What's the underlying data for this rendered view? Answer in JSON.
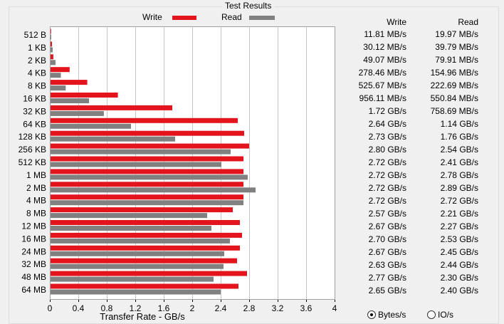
{
  "window": {
    "group_title": "Test Results"
  },
  "legend": {
    "write_label": "Write",
    "read_label": "Read"
  },
  "table": {
    "write_header": "Write",
    "read_header": "Read",
    "rows": [
      {
        "write": "11.81 MB/s",
        "read": "19.97 MB/s"
      },
      {
        "write": "30.12 MB/s",
        "read": "39.79 MB/s"
      },
      {
        "write": "49.07 MB/s",
        "read": "79.91 MB/s"
      },
      {
        "write": "278.46 MB/s",
        "read": "154.96 MB/s"
      },
      {
        "write": "525.67 MB/s",
        "read": "222.69 MB/s"
      },
      {
        "write": "956.11 MB/s",
        "read": "550.84 MB/s"
      },
      {
        "write": "1.72 GB/s",
        "read": "758.69 MB/s"
      },
      {
        "write": "2.64 GB/s",
        "read": "1.14 GB/s"
      },
      {
        "write": "2.73 GB/s",
        "read": "1.76 GB/s"
      },
      {
        "write": "2.80 GB/s",
        "read": "2.54 GB/s"
      },
      {
        "write": "2.72 GB/s",
        "read": "2.41 GB/s"
      },
      {
        "write": "2.72 GB/s",
        "read": "2.78 GB/s"
      },
      {
        "write": "2.72 GB/s",
        "read": "2.89 GB/s"
      },
      {
        "write": "2.72 GB/s",
        "read": "2.72 GB/s"
      },
      {
        "write": "2.57 GB/s",
        "read": "2.21 GB/s"
      },
      {
        "write": "2.67 GB/s",
        "read": "2.27 GB/s"
      },
      {
        "write": "2.70 GB/s",
        "read": "2.53 GB/s"
      },
      {
        "write": "2.67 GB/s",
        "read": "2.45 GB/s"
      },
      {
        "write": "2.63 GB/s",
        "read": "2.44 GB/s"
      },
      {
        "write": "2.77 GB/s",
        "read": "2.30 GB/s"
      },
      {
        "write": "2.65 GB/s",
        "read": "2.40 GB/s"
      }
    ]
  },
  "options": {
    "bytes_label": "Bytes/s",
    "io_label": "IO/s",
    "selected": "Bytes/s"
  },
  "colors": {
    "write": "#e3141b",
    "read": "#808080"
  },
  "chart_data": {
    "type": "bar",
    "orientation": "horizontal",
    "categories": [
      "512 B",
      "1 KB",
      "2 KB",
      "4 KB",
      "8 KB",
      "16 KB",
      "32 KB",
      "64 KB",
      "128 KB",
      "256 KB",
      "512 KB",
      "1 MB",
      "2 MB",
      "4 MB",
      "8 MB",
      "12 MB",
      "16 MB",
      "24 MB",
      "32 MB",
      "48 MB",
      "64 MB"
    ],
    "series": [
      {
        "name": "Write",
        "values": [
          0.01181,
          0.03012,
          0.04907,
          0.27846,
          0.52567,
          0.95611,
          1.72,
          2.64,
          2.73,
          2.8,
          2.72,
          2.72,
          2.72,
          2.72,
          2.57,
          2.67,
          2.7,
          2.67,
          2.63,
          2.77,
          2.65
        ]
      },
      {
        "name": "Read",
        "values": [
          0.01997,
          0.03979,
          0.07991,
          0.15496,
          0.22269,
          0.55084,
          0.75869,
          1.14,
          1.76,
          2.54,
          2.41,
          2.78,
          2.89,
          2.72,
          2.21,
          2.27,
          2.53,
          2.45,
          2.44,
          2.3,
          2.4
        ]
      }
    ],
    "xlabel": "Transfer Rate - GB/s",
    "xlim": [
      0,
      4
    ],
    "xticks": [
      "0",
      "0.4",
      "0.8",
      "1.2",
      "1.6",
      "2",
      "2.4",
      "2.8",
      "3.2",
      "3.6",
      "4"
    ],
    "grid": true
  }
}
